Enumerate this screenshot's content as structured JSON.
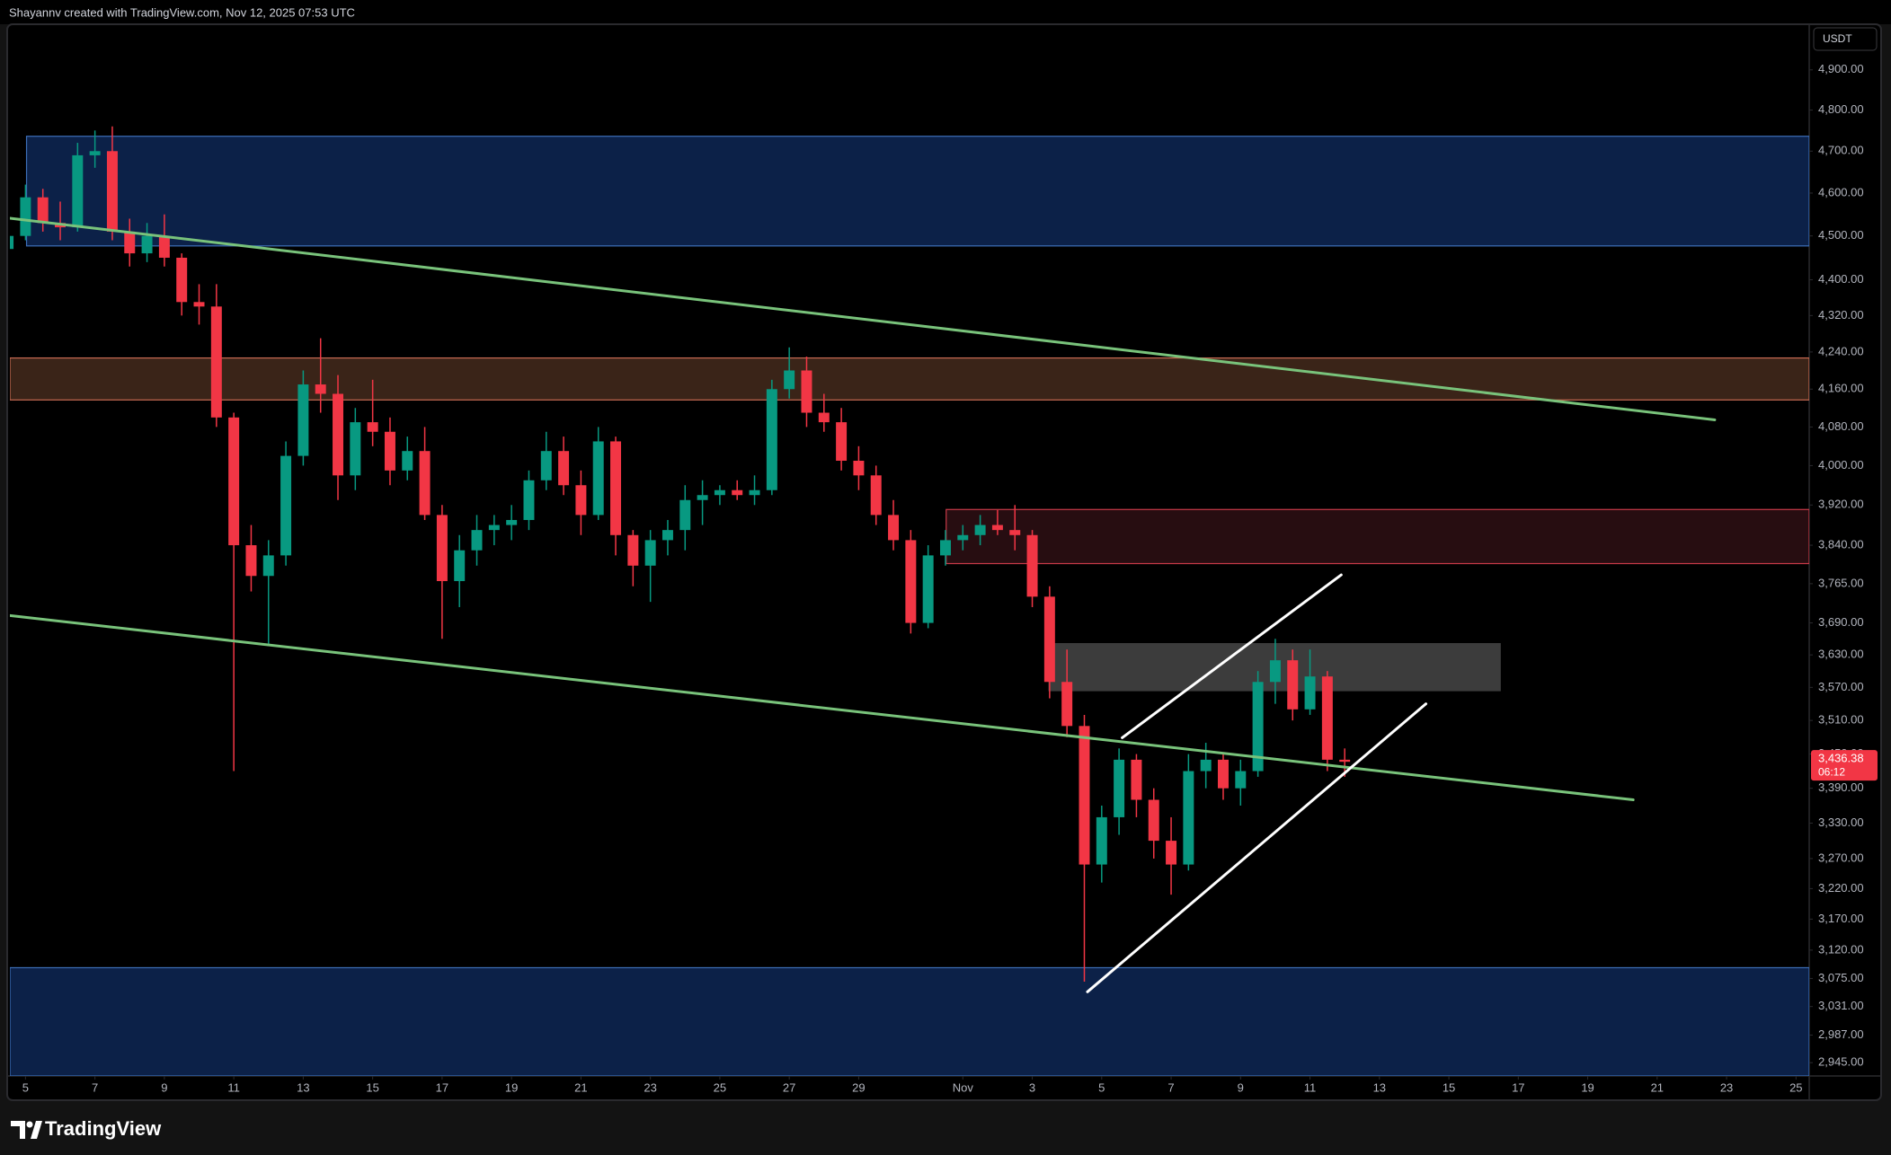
{
  "chart_data": {
    "type": "candlestick",
    "attribution": "Shayannv created with TradingView.com, Nov 12, 2025 07:53 UTC",
    "currency": "USDT",
    "brand": "TradingView",
    "log_scale": true,
    "grid": false,
    "up_color": "#089981",
    "down_color": "#f23645",
    "xlim": [
      4.55,
      56.38
    ],
    "ylim": [
      2925,
      5016
    ],
    "xticks": [
      5,
      7,
      9,
      11,
      13,
      15,
      17,
      19,
      21,
      23,
      25,
      27,
      29,
      {
        "value": 32,
        "label": "Nov"
      },
      {
        "value": 34,
        "label": "3"
      },
      {
        "value": 36,
        "label": "5"
      },
      {
        "value": 38,
        "label": "7"
      },
      {
        "value": 40,
        "label": "9"
      },
      {
        "value": 42,
        "label": "11"
      },
      {
        "value": 44,
        "label": "13"
      },
      {
        "value": 46,
        "label": "15"
      },
      {
        "value": 48,
        "label": "17"
      },
      {
        "value": 50,
        "label": "19"
      },
      {
        "value": 52,
        "label": "21"
      },
      {
        "value": 54,
        "label": "23"
      },
      {
        "value": 56,
        "label": "25"
      }
    ],
    "yticks": [
      {
        "value": 4900,
        "label": "4,900.00"
      },
      {
        "value": 4800,
        "label": "4,800.00"
      },
      {
        "value": 4700,
        "label": "4,700.00"
      },
      {
        "value": 4600,
        "label": "4,600.00"
      },
      {
        "value": 4500,
        "label": "4,500.00"
      },
      {
        "value": 4400,
        "label": "4,400.00"
      },
      {
        "value": 4320,
        "label": "4,320.00"
      },
      {
        "value": 4240,
        "label": "4,240.00"
      },
      {
        "value": 4160,
        "label": "4,160.00"
      },
      {
        "value": 4080,
        "label": "4,080.00"
      },
      {
        "value": 4000,
        "label": "4,000.00"
      },
      {
        "value": 3920,
        "label": "3,920.00"
      },
      {
        "value": 3840,
        "label": "3,840.00"
      },
      {
        "value": 3765,
        "label": "3,765.00"
      },
      {
        "value": 3690,
        "label": "3,690.00"
      },
      {
        "value": 3630,
        "label": "3,630.00"
      },
      {
        "value": 3570,
        "label": "3,570.00"
      },
      {
        "value": 3510,
        "label": "3,510.00"
      },
      {
        "value": 3450,
        "label": "3,450.00"
      },
      {
        "value": 3390,
        "label": "3,390.00"
      },
      {
        "value": 3330,
        "label": "3,330.00"
      },
      {
        "value": 3270,
        "label": "3,270.00"
      },
      {
        "value": 3220,
        "label": "3,220.00"
      },
      {
        "value": 3170,
        "label": "3,170.00"
      },
      {
        "value": 3120,
        "label": "3,120.00"
      },
      {
        "value": 3075,
        "label": "3,075.00"
      },
      {
        "value": 3031,
        "label": "3,031.00"
      },
      {
        "value": 2987,
        "label": "2,987.00"
      },
      {
        "value": 2945,
        "label": "2,945.00"
      }
    ],
    "x": [
      4.5,
      5,
      5.5,
      6,
      6.5,
      7,
      7.5,
      8,
      8.5,
      9,
      9.5,
      10,
      10.5,
      11,
      11.5,
      12,
      12.5,
      13,
      13.5,
      14,
      14.5,
      15,
      15.5,
      16,
      16.5,
      17,
      17.5,
      18,
      18.5,
      19,
      19.5,
      20,
      20.5,
      21,
      21.5,
      22,
      22.5,
      23,
      23.5,
      24,
      24.5,
      25,
      25.5,
      26,
      26.5,
      27,
      27.5,
      28,
      28.5,
      29,
      29.5,
      30,
      30.5,
      31,
      31.5,
      32,
      32.5,
      33,
      33.5,
      34,
      34.5,
      35,
      35.5,
      36,
      36.5,
      37,
      37.5,
      38,
      38.5,
      39,
      39.5,
      40,
      40.5,
      41,
      41.5,
      42,
      42.5,
      43
    ],
    "open": [
      4470,
      4500,
      4590,
      4530,
      4520,
      4690,
      4700,
      4510,
      4460,
      4500,
      4450,
      4350,
      4340,
      4100,
      3840,
      3780,
      3820,
      4020,
      4170,
      4150,
      3980,
      4090,
      4070,
      3990,
      4030,
      3900,
      3770,
      3830,
      3870,
      3880,
      3890,
      3970,
      4030,
      3960,
      3900,
      4050,
      3860,
      3800,
      3850,
      3870,
      3930,
      3940,
      3950,
      3940,
      3950,
      4160,
      4200,
      4110,
      4090,
      4010,
      3980,
      3900,
      3850,
      3690,
      3820,
      3850,
      3860,
      3880,
      3870,
      3860,
      3740,
      3580,
      3500,
      3260,
      3340,
      3440,
      3370,
      3300,
      3260,
      3420,
      3440,
      3390,
      3420,
      3580,
      3620,
      3530,
      3590,
      3440
    ],
    "high": [
      4510,
      4620,
      4610,
      4580,
      4720,
      4750,
      4760,
      4540,
      4530,
      4550,
      4460,
      4390,
      4390,
      4110,
      3880,
      3850,
      4050,
      4200,
      4270,
      4190,
      4120,
      4180,
      4100,
      4060,
      4080,
      3920,
      3860,
      3900,
      3900,
      3920,
      3990,
      4070,
      4060,
      3990,
      4080,
      4060,
      3870,
      3870,
      3890,
      3960,
      3970,
      3960,
      3970,
      3980,
      4180,
      4250,
      4230,
      4150,
      4120,
      4040,
      4000,
      3930,
      3870,
      3840,
      3870,
      3880,
      3900,
      3910,
      3920,
      3870,
      3760,
      3640,
      3520,
      3360,
      3460,
      3450,
      3390,
      3340,
      3450,
      3470,
      3450,
      3440,
      3600,
      3660,
      3640,
      3640,
      3600,
      3460
    ],
    "low": [
      4440,
      4490,
      4510,
      4490,
      4510,
      4660,
      4490,
      4430,
      4440,
      4430,
      4320,
      4300,
      4080,
      3420,
      3750,
      3650,
      3800,
      4000,
      4110,
      3930,
      3950,
      4040,
      3960,
      3970,
      3890,
      3660,
      3720,
      3800,
      3840,
      3850,
      3870,
      3950,
      3940,
      3860,
      3890,
      3820,
      3760,
      3730,
      3820,
      3830,
      3880,
      3920,
      3930,
      3920,
      3940,
      4140,
      4080,
      4070,
      3990,
      3950,
      3880,
      3830,
      3670,
      3680,
      3800,
      3830,
      3840,
      3860,
      3830,
      3720,
      3550,
      3480,
      3070,
      3230,
      3310,
      3340,
      3270,
      3210,
      3250,
      3390,
      3370,
      3360,
      3410,
      3540,
      3510,
      3520,
      3420,
      3410
    ],
    "close": [
      4500,
      4590,
      4530,
      4520,
      4690,
      4700,
      4510,
      4460,
      4500,
      4450,
      4350,
      4340,
      4100,
      3840,
      3780,
      3820,
      4020,
      4170,
      4150,
      3980,
      4090,
      4070,
      3990,
      4030,
      3900,
      3770,
      3830,
      3870,
      3880,
      3890,
      3970,
      4030,
      3960,
      3900,
      4050,
      3860,
      3800,
      3850,
      3870,
      3930,
      3940,
      3950,
      3940,
      3950,
      4160,
      4200,
      4110,
      4090,
      4010,
      3980,
      3900,
      3850,
      3690,
      3820,
      3850,
      3860,
      3880,
      3870,
      3860,
      3740,
      3580,
      3500,
      3260,
      3340,
      3440,
      3370,
      3300,
      3260,
      3420,
      3440,
      3390,
      3420,
      3580,
      3620,
      3530,
      3590,
      3440,
      3436.38
    ],
    "last_price": {
      "value": 3436.38,
      "label": "3,436.38"
    },
    "countdown": "06:12",
    "zones": [
      {
        "x0": 5.03,
        "x1": 56.38,
        "top": 4736,
        "bottom": 4477,
        "fill": "#0c2148",
        "stroke": "#3d6fb8"
      },
      {
        "x0": 4.55,
        "x1": 56.38,
        "top": 4227,
        "bottom": 4137,
        "fill": "#3a2418",
        "stroke": "#c86a52"
      },
      {
        "x0": 31.52,
        "x1": 56.38,
        "top": 3911,
        "bottom": 3804,
        "fill": "#270d11",
        "stroke": "#c83a48"
      },
      {
        "x0": 34.48,
        "x1": 47.48,
        "top": 3651,
        "bottom": 3564,
        "fill": "#3c3c3c",
        "stroke": "#3c3c3c"
      },
      {
        "x0": 4.55,
        "x1": 56.38,
        "top": 3092,
        "bottom": 2925,
        "fill": "#0c2148",
        "stroke": "#3d6fb8"
      }
    ],
    "lines": [
      {
        "x0": 4.55,
        "y0": 4541,
        "x1": 53.66,
        "y1": 4095,
        "color": "#79c37b"
      },
      {
        "x0": 4.55,
        "y0": 3704,
        "x1": 51.31,
        "y1": 3370,
        "color": "#79c37b"
      },
      {
        "x0": 36.59,
        "y0": 3479,
        "x1": 42.9,
        "y1": 3782,
        "color": "#ffffff"
      },
      {
        "x0": 35.59,
        "y0": 3054,
        "x1": 45.34,
        "y1": 3540,
        "color": "#ffffff"
      }
    ]
  }
}
